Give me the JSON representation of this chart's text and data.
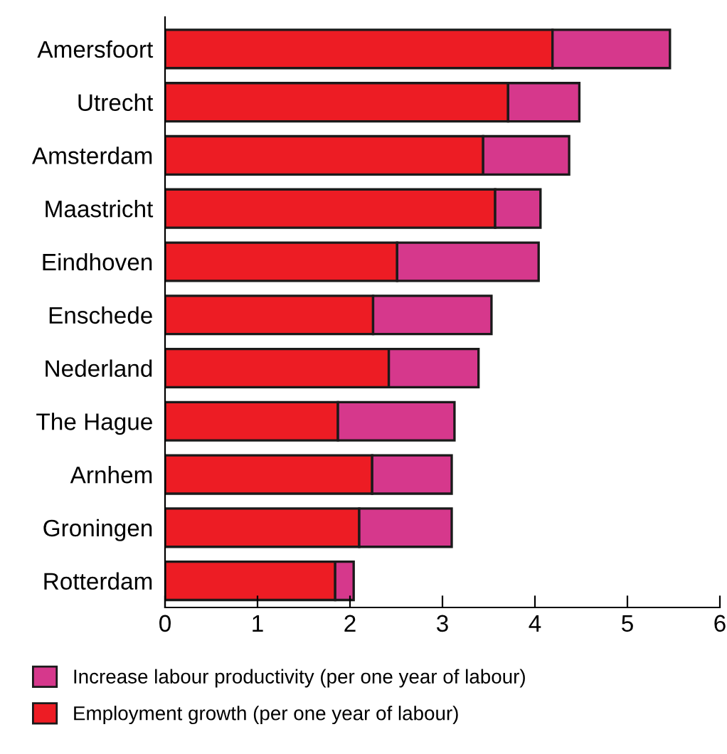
{
  "chart_data": {
    "type": "bar",
    "orientation": "horizontal",
    "stacked": true,
    "categories": [
      "Amersfoort",
      "Utrecht",
      "Amsterdam",
      "Maastricht",
      "Eindhoven",
      "Enschede",
      "Nederland",
      "The Hague",
      "Arnhem",
      "Groningen",
      "Rotterdam"
    ],
    "series": [
      {
        "name": "Employment growth (per one year of labour)",
        "color": "#ed1c24",
        "values": [
          4.19,
          3.71,
          3.44,
          3.57,
          2.51,
          2.25,
          2.42,
          1.87,
          2.24,
          2.1,
          1.84
        ]
      },
      {
        "name": "Increase labour productivity (per one year of labour)",
        "color": "#d6388c",
        "values": [
          1.27,
          0.77,
          0.93,
          0.49,
          1.53,
          1.28,
          0.97,
          1.26,
          0.86,
          1.0,
          0.2
        ]
      }
    ],
    "xlim": [
      0,
      6
    ],
    "xticks": [
      0,
      1,
      2,
      3,
      4,
      5,
      6
    ],
    "grid": false,
    "legend": "bottom"
  }
}
